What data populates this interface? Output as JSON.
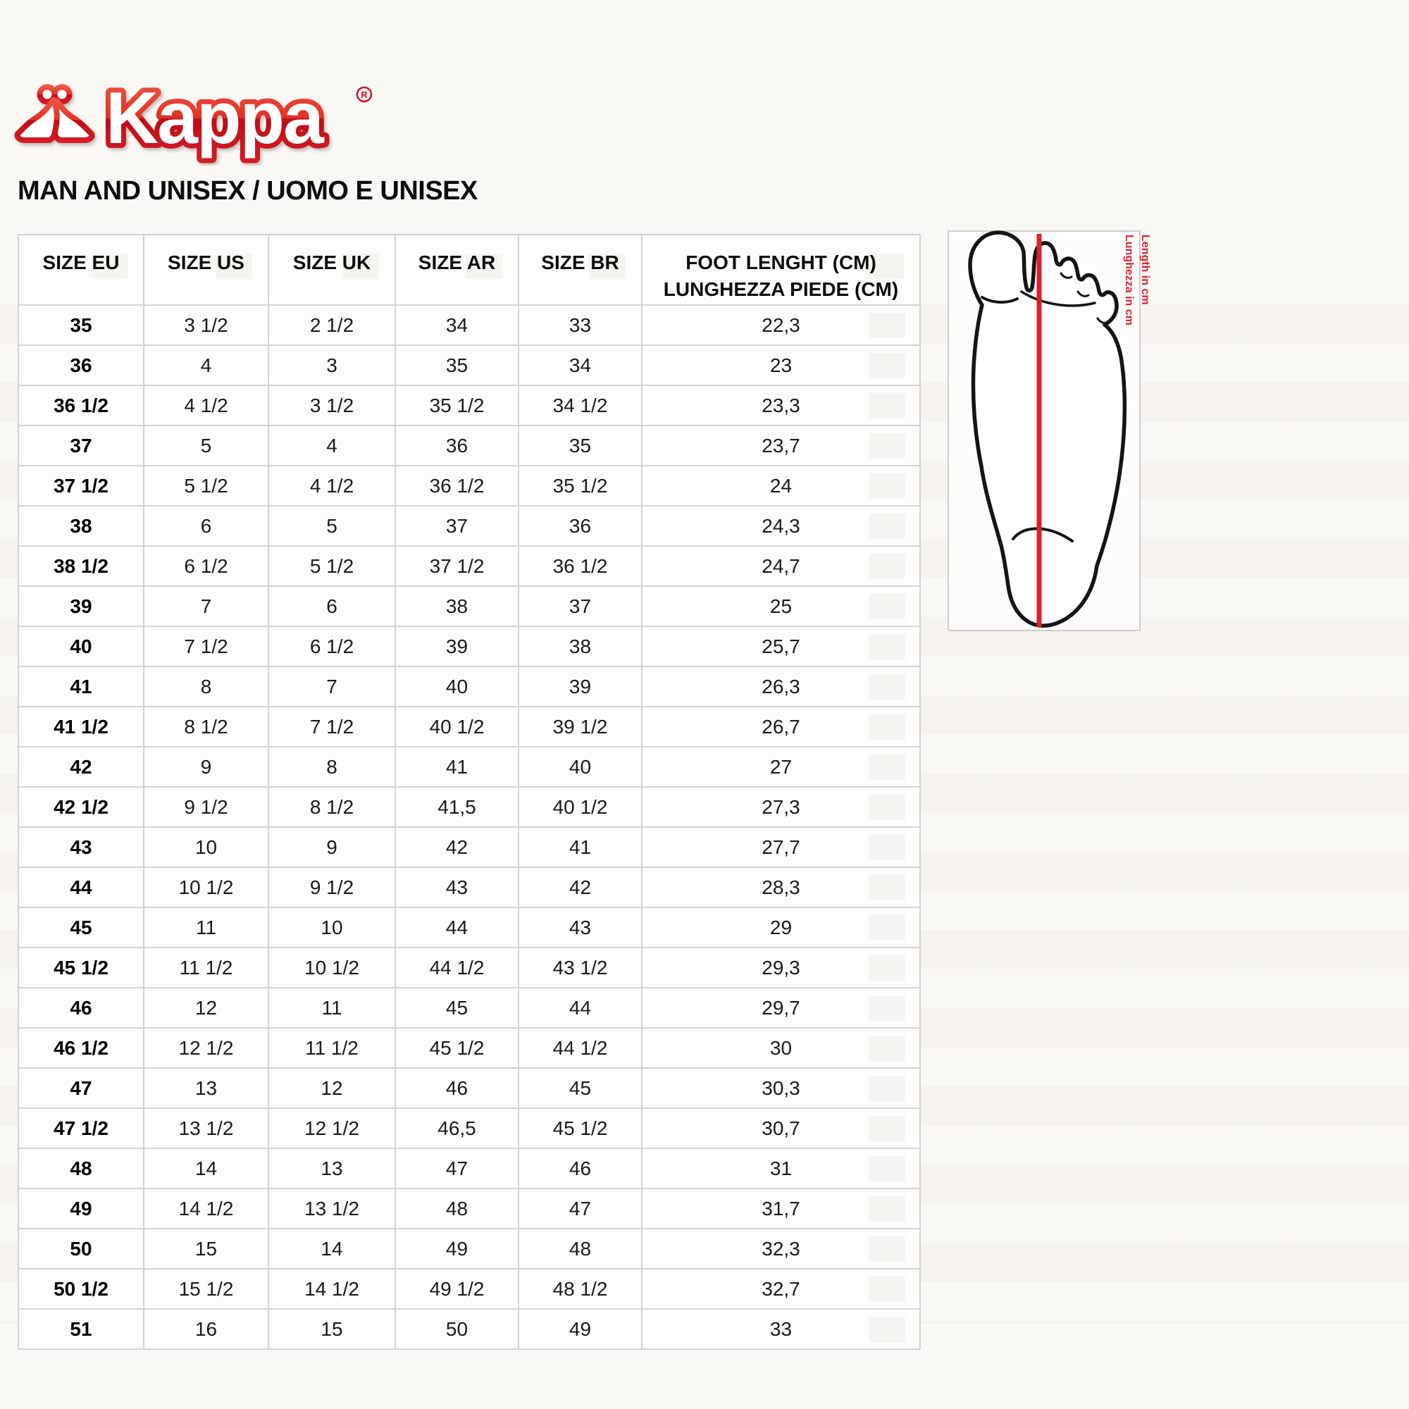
{
  "brand": {
    "name": "Kappa",
    "registered_mark": "®"
  },
  "title": "MAN AND UNISEX / UOMO E UNISEX",
  "size_table": {
    "col_keys": [
      "eu",
      "us",
      "uk",
      "ar",
      "br",
      "foot_length_cm"
    ],
    "headers": {
      "eu": "SIZE EU",
      "us": "SIZE US",
      "uk": "SIZE UK",
      "ar": "SIZE AR",
      "br": "SIZE BR",
      "foot_line1": "FOOT LENGHT (CM)",
      "foot_line2": "LUNGHEZZA PIEDE (CM)"
    },
    "rows": [
      [
        "35",
        "3 1/2",
        "2 1/2",
        "34",
        "33",
        "22,3"
      ],
      [
        "36",
        "4",
        "3",
        "35",
        "34",
        "23"
      ],
      [
        "36 1/2",
        "4 1/2",
        "3 1/2",
        "35 1/2",
        "34 1/2",
        "23,3"
      ],
      [
        "37",
        "5",
        "4",
        "36",
        "35",
        "23,7"
      ],
      [
        "37 1/2",
        "5 1/2",
        "4 1/2",
        "36 1/2",
        "35 1/2",
        "24"
      ],
      [
        "38",
        "6",
        "5",
        "37",
        "36",
        "24,3"
      ],
      [
        "38 1/2",
        "6 1/2",
        "5 1/2",
        "37 1/2",
        "36 1/2",
        "24,7"
      ],
      [
        "39",
        "7",
        "6",
        "38",
        "37",
        "25"
      ],
      [
        "40",
        "7 1/2",
        "6 1/2",
        "39",
        "38",
        "25,7"
      ],
      [
        "41",
        "8",
        "7",
        "40",
        "39",
        "26,3"
      ],
      [
        "41 1/2",
        "8 1/2",
        "7 1/2",
        "40 1/2",
        "39 1/2",
        "26,7"
      ],
      [
        "42",
        "9",
        "8",
        "41",
        "40",
        "27"
      ],
      [
        "42 1/2",
        "9 1/2",
        "8 1/2",
        "41,5",
        "40 1/2",
        "27,3"
      ],
      [
        "43",
        "10",
        "9",
        "42",
        "41",
        "27,7"
      ],
      [
        "44",
        "10 1/2",
        "9 1/2",
        "43",
        "42",
        "28,3"
      ],
      [
        "45",
        "11",
        "10",
        "44",
        "43",
        "29"
      ],
      [
        "45 1/2",
        "11 1/2",
        "10 1/2",
        "44 1/2",
        "43 1/2",
        "29,3"
      ],
      [
        "46",
        "12",
        "11",
        "45",
        "44",
        "29,7"
      ],
      [
        "46 1/2",
        "12 1/2",
        "11 1/2",
        "45 1/2",
        "44 1/2",
        "30"
      ],
      [
        "47",
        "13",
        "12",
        "46",
        "45",
        "30,3"
      ],
      [
        "47 1/2",
        "13 1/2",
        "12 1/2",
        "46,5",
        "45 1/2",
        "30,7"
      ],
      [
        "48",
        "14",
        "13",
        "47",
        "46",
        "31"
      ],
      [
        "49",
        "14 1/2",
        "13 1/2",
        "48",
        "47",
        "31,7"
      ],
      [
        "50",
        "15",
        "14",
        "49",
        "48",
        "32,3"
      ],
      [
        "50 1/2",
        "15 1/2",
        "14 1/2",
        "49 1/2",
        "48 1/2",
        "32,7"
      ],
      [
        "51",
        "16",
        "15",
        "50",
        "49",
        "33"
      ]
    ]
  },
  "foot_figure": {
    "label_length_en": "Length in cm",
    "label_length_it": "Lunghezza in cm",
    "line_color": "#d8232a",
    "label_color": "#e02128"
  },
  "colors": {
    "logo_red_top": "#ef5445",
    "logo_red_bottom": "#c11020",
    "table_border": "#d6d4d1",
    "page_background": "#faf8f5"
  }
}
